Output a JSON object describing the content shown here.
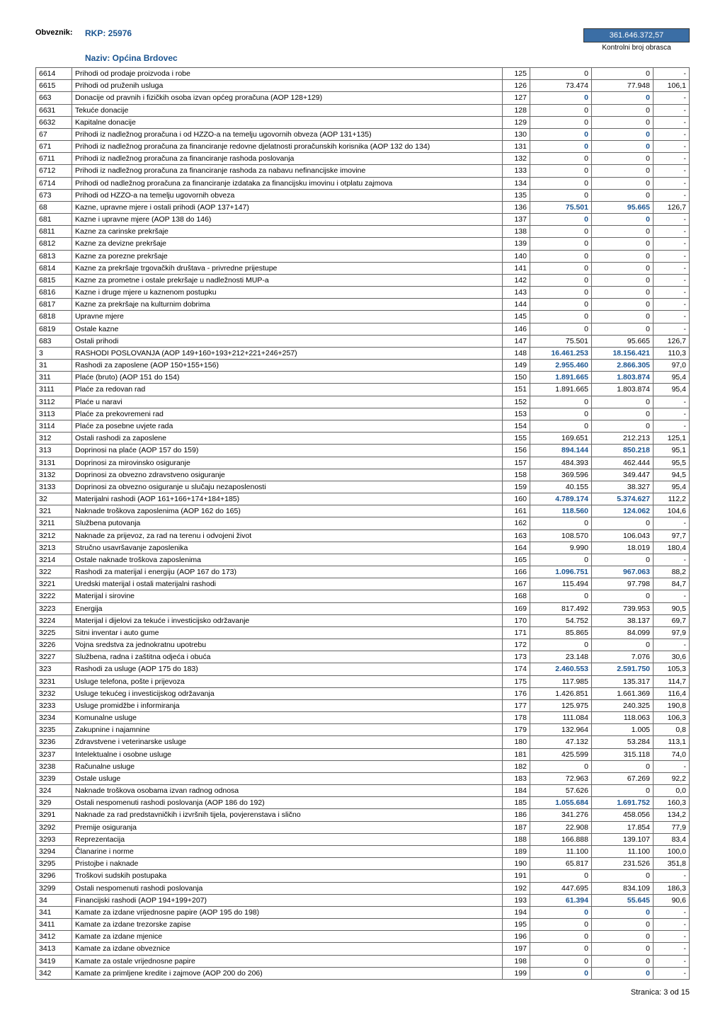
{
  "header": {
    "obveznik_label": "Obveznik:",
    "rkp": "RKP: 25976",
    "naziv_label": "Naziv: Općina Brdovec",
    "kontrol_value": "361.646.372,57",
    "kontrol_label": "Kontrolni broj obrasca"
  },
  "footer": "Stranica: 3 od 15",
  "rows": [
    {
      "c": "6614",
      "d": "Prihodi od prodaje proizvoda i robe",
      "a": "125",
      "v1": "0",
      "v2": "0",
      "v3": "-"
    },
    {
      "c": "6615",
      "d": "Prihodi od pruženih usluga",
      "a": "126",
      "v1": "73.474",
      "v2": "77.948",
      "v3": "106,1"
    },
    {
      "c": "663",
      "d": "Donacije od pravnih i fizičkih osoba izvan općeg proračuna (AOP 128+129)",
      "a": "127",
      "v1": "0",
      "v2": "0",
      "v3": "-",
      "b": 1
    },
    {
      "c": "6631",
      "d": "Tekuće donacije",
      "a": "128",
      "v1": "0",
      "v2": "0",
      "v3": "-"
    },
    {
      "c": "6632",
      "d": "Kapitalne donacije",
      "a": "129",
      "v1": "0",
      "v2": "0",
      "v3": "-"
    },
    {
      "c": "67",
      "d": "Prihodi iz nadležnog proračuna i od HZZO-a na temelju ugovornih obveza (AOP 131+135)",
      "a": "130",
      "v1": "0",
      "v2": "0",
      "v3": "-",
      "b": 1
    },
    {
      "c": "671",
      "d": "Prihodi iz nadležnog proračuna za financiranje redovne djelatnosti proračunskih korisnika (AOP 132 do 134)",
      "a": "131",
      "v1": "0",
      "v2": "0",
      "v3": "-",
      "b": 1
    },
    {
      "c": "6711",
      "d": "Prihodi iz nadležnog proračuna za financiranje rashoda poslovanja",
      "a": "132",
      "v1": "0",
      "v2": "0",
      "v3": "-"
    },
    {
      "c": "6712",
      "d": "Prihodi iz nadležnog proračuna za financiranje rashoda za nabavu nefinancijske imovine",
      "a": "133",
      "v1": "0",
      "v2": "0",
      "v3": "-"
    },
    {
      "c": "6714",
      "d": "Prihodi od nadležnog proračuna za financiranje izdataka za financijsku imovinu i otplatu zajmova",
      "a": "134",
      "v1": "0",
      "v2": "0",
      "v3": "-"
    },
    {
      "c": "673",
      "d": "Prihodi od HZZO-a na temelju ugovornih obveza",
      "a": "135",
      "v1": "0",
      "v2": "0",
      "v3": "-"
    },
    {
      "c": "68",
      "d": "Kazne, upravne mjere i ostali prihodi (AOP 137+147)",
      "a": "136",
      "v1": "75.501",
      "v2": "95.665",
      "v3": "126,7",
      "b": 1
    },
    {
      "c": "681",
      "d": "Kazne i upravne mjere (AOP 138 do 146)",
      "a": "137",
      "v1": "0",
      "v2": "0",
      "v3": "-",
      "b": 1
    },
    {
      "c": "6811",
      "d": "Kazne za carinske prekršaje",
      "a": "138",
      "v1": "0",
      "v2": "0",
      "v3": "-"
    },
    {
      "c": "6812",
      "d": "Kazne za devizne prekršaje",
      "a": "139",
      "v1": "0",
      "v2": "0",
      "v3": "-"
    },
    {
      "c": "6813",
      "d": "Kazne za porezne prekršaje",
      "a": "140",
      "v1": "0",
      "v2": "0",
      "v3": "-"
    },
    {
      "c": "6814",
      "d": "Kazne za prekršaje trgovačkih društava - privredne prijestupe",
      "a": "141",
      "v1": "0",
      "v2": "0",
      "v3": "-"
    },
    {
      "c": "6815",
      "d": "Kazne za prometne i ostale prekršaje u nadležnosti MUP-a",
      "a": "142",
      "v1": "0",
      "v2": "0",
      "v3": "-"
    },
    {
      "c": "6816",
      "d": "Kazne i druge mjere u kaznenom postupku",
      "a": "143",
      "v1": "0",
      "v2": "0",
      "v3": "-"
    },
    {
      "c": "6817",
      "d": "Kazne za prekršaje na kulturnim dobrima",
      "a": "144",
      "v1": "0",
      "v2": "0",
      "v3": "-"
    },
    {
      "c": "6818",
      "d": "Upravne mjere",
      "a": "145",
      "v1": "0",
      "v2": "0",
      "v3": "-"
    },
    {
      "c": "6819",
      "d": "Ostale kazne",
      "a": "146",
      "v1": "0",
      "v2": "0",
      "v3": "-"
    },
    {
      "c": "683",
      "d": "Ostali prihodi",
      "a": "147",
      "v1": "75.501",
      "v2": "95.665",
      "v3": "126,7"
    },
    {
      "c": "3",
      "d": "RASHODI POSLOVANJA (AOP 149+160+193+212+221+246+257)",
      "a": "148",
      "v1": "16.461.253",
      "v2": "18.156.421",
      "v3": "110,3",
      "b": 1
    },
    {
      "c": "31",
      "d": "Rashodi za zaposlene (AOP 150+155+156)",
      "a": "149",
      "v1": "2.955.460",
      "v2": "2.866.305",
      "v3": "97,0",
      "b": 1
    },
    {
      "c": "311",
      "d": "Plaće (bruto) (AOP 151 do 154)",
      "a": "150",
      "v1": "1.891.665",
      "v2": "1.803.874",
      "v3": "95,4",
      "b": 1
    },
    {
      "c": "3111",
      "d": "Plaće za redovan rad",
      "a": "151",
      "v1": "1.891.665",
      "v2": "1.803.874",
      "v3": "95,4"
    },
    {
      "c": "3112",
      "d": "Plaće u naravi",
      "a": "152",
      "v1": "0",
      "v2": "0",
      "v3": "-"
    },
    {
      "c": "3113",
      "d": "Plaće za prekovremeni rad",
      "a": "153",
      "v1": "0",
      "v2": "0",
      "v3": "-"
    },
    {
      "c": "3114",
      "d": "Plaće za posebne uvjete rada",
      "a": "154",
      "v1": "0",
      "v2": "0",
      "v3": "-"
    },
    {
      "c": "312",
      "d": "Ostali rashodi za zaposlene",
      "a": "155",
      "v1": "169.651",
      "v2": "212.213",
      "v3": "125,1"
    },
    {
      "c": "313",
      "d": "Doprinosi na plaće (AOP 157 do 159)",
      "a": "156",
      "v1": "894.144",
      "v2": "850.218",
      "v3": "95,1",
      "b": 1
    },
    {
      "c": "3131",
      "d": "Doprinosi za mirovinsko osiguranje",
      "a": "157",
      "v1": "484.393",
      "v2": "462.444",
      "v3": "95,5"
    },
    {
      "c": "3132",
      "d": "Doprinosi za obvezno zdravstveno osiguranje",
      "a": "158",
      "v1": "369.596",
      "v2": "349.447",
      "v3": "94,5"
    },
    {
      "c": "3133",
      "d": "Doprinosi za obvezno osiguranje u slučaju nezaposlenosti",
      "a": "159",
      "v1": "40.155",
      "v2": "38.327",
      "v3": "95,4"
    },
    {
      "c": "32",
      "d": "Materijalni rashodi (AOP 161+166+174+184+185)",
      "a": "160",
      "v1": "4.789.174",
      "v2": "5.374.627",
      "v3": "112,2",
      "b": 1
    },
    {
      "c": "321",
      "d": "Naknade troškova zaposlenima (AOP 162 do 165)",
      "a": "161",
      "v1": "118.560",
      "v2": "124.062",
      "v3": "104,6",
      "b": 1
    },
    {
      "c": "3211",
      "d": "Službena putovanja",
      "a": "162",
      "v1": "0",
      "v2": "0",
      "v3": "-"
    },
    {
      "c": "3212",
      "d": "Naknade za prijevoz, za rad na terenu i odvojeni život",
      "a": "163",
      "v1": "108.570",
      "v2": "106.043",
      "v3": "97,7"
    },
    {
      "c": "3213",
      "d": "Stručno usavršavanje zaposlenika",
      "a": "164",
      "v1": "9.990",
      "v2": "18.019",
      "v3": "180,4"
    },
    {
      "c": "3214",
      "d": "Ostale naknade troškova zaposlenima",
      "a": "165",
      "v1": "0",
      "v2": "0",
      "v3": "-"
    },
    {
      "c": "322",
      "d": "Rashodi za materijal i energiju (AOP 167 do 173)",
      "a": "166",
      "v1": "1.096.751",
      "v2": "967.063",
      "v3": "88,2",
      "b": 1
    },
    {
      "c": "3221",
      "d": "Uredski materijal i ostali materijalni rashodi",
      "a": "167",
      "v1": "115.494",
      "v2": "97.798",
      "v3": "84,7"
    },
    {
      "c": "3222",
      "d": "Materijal i sirovine",
      "a": "168",
      "v1": "0",
      "v2": "0",
      "v3": "-"
    },
    {
      "c": "3223",
      "d": "Energija",
      "a": "169",
      "v1": "817.492",
      "v2": "739.953",
      "v3": "90,5"
    },
    {
      "c": "3224",
      "d": "Materijal i dijelovi za tekuće i investicijsko održavanje",
      "a": "170",
      "v1": "54.752",
      "v2": "38.137",
      "v3": "69,7"
    },
    {
      "c": "3225",
      "d": "Sitni inventar i auto gume",
      "a": "171",
      "v1": "85.865",
      "v2": "84.099",
      "v3": "97,9"
    },
    {
      "c": "3226",
      "d": "Vojna sredstva za jednokratnu upotrebu",
      "a": "172",
      "v1": "0",
      "v2": "0",
      "v3": "-"
    },
    {
      "c": "3227",
      "d": "Službena, radna i zaštitna odjeća i obuća",
      "a": "173",
      "v1": "23.148",
      "v2": "7.076",
      "v3": "30,6"
    },
    {
      "c": "323",
      "d": "Rashodi za usluge (AOP 175 do 183)",
      "a": "174",
      "v1": "2.460.553",
      "v2": "2.591.750",
      "v3": "105,3",
      "b": 1
    },
    {
      "c": "3231",
      "d": "Usluge telefona, pošte i prijevoza",
      "a": "175",
      "v1": "117.985",
      "v2": "135.317",
      "v3": "114,7"
    },
    {
      "c": "3232",
      "d": "Usluge tekućeg i investicijskog održavanja",
      "a": "176",
      "v1": "1.426.851",
      "v2": "1.661.369",
      "v3": "116,4"
    },
    {
      "c": "3233",
      "d": "Usluge promidžbe i informiranja",
      "a": "177",
      "v1": "125.975",
      "v2": "240.325",
      "v3": "190,8"
    },
    {
      "c": "3234",
      "d": "Komunalne usluge",
      "a": "178",
      "v1": "111.084",
      "v2": "118.063",
      "v3": "106,3"
    },
    {
      "c": "3235",
      "d": "Zakupnine i najamnine",
      "a": "179",
      "v1": "132.964",
      "v2": "1.005",
      "v3": "0,8"
    },
    {
      "c": "3236",
      "d": "Zdravstvene i veterinarske usluge",
      "a": "180",
      "v1": "47.132",
      "v2": "53.284",
      "v3": "113,1"
    },
    {
      "c": "3237",
      "d": "Intelektualne i osobne usluge",
      "a": "181",
      "v1": "425.599",
      "v2": "315.118",
      "v3": "74,0"
    },
    {
      "c": "3238",
      "d": "Računalne usluge",
      "a": "182",
      "v1": "0",
      "v2": "0",
      "v3": "-"
    },
    {
      "c": "3239",
      "d": "Ostale usluge",
      "a": "183",
      "v1": "72.963",
      "v2": "67.269",
      "v3": "92,2"
    },
    {
      "c": "324",
      "d": "Naknade troškova osobama izvan radnog odnosa",
      "a": "184",
      "v1": "57.626",
      "v2": "0",
      "v3": "0,0"
    },
    {
      "c": "329",
      "d": "Ostali nespomenuti rashodi poslovanja (AOP 186 do 192)",
      "a": "185",
      "v1": "1.055.684",
      "v2": "1.691.752",
      "v3": "160,3",
      "b": 1
    },
    {
      "c": "3291",
      "d": "Naknade za rad predstavničkih i izvršnih tijela, povjerenstava i slično",
      "a": "186",
      "v1": "341.276",
      "v2": "458.056",
      "v3": "134,2"
    },
    {
      "c": "3292",
      "d": "Premije osiguranja",
      "a": "187",
      "v1": "22.908",
      "v2": "17.854",
      "v3": "77,9"
    },
    {
      "c": "3293",
      "d": "Reprezentacija",
      "a": "188",
      "v1": "166.888",
      "v2": "139.107",
      "v3": "83,4"
    },
    {
      "c": "3294",
      "d": "Članarine i norme",
      "a": "189",
      "v1": "11.100",
      "v2": "11.100",
      "v3": "100,0"
    },
    {
      "c": "3295",
      "d": "Pristojbe i naknade",
      "a": "190",
      "v1": "65.817",
      "v2": "231.526",
      "v3": "351,8"
    },
    {
      "c": "3296",
      "d": "Troškovi sudskih postupaka",
      "a": "191",
      "v1": "0",
      "v2": "0",
      "v3": "-"
    },
    {
      "c": "3299",
      "d": "Ostali nespomenuti rashodi poslovanja",
      "a": "192",
      "v1": "447.695",
      "v2": "834.109",
      "v3": "186,3"
    },
    {
      "c": "34",
      "d": "Financijski rashodi (AOP 194+199+207)",
      "a": "193",
      "v1": "61.394",
      "v2": "55.645",
      "v3": "90,6",
      "b": 1
    },
    {
      "c": "341",
      "d": "Kamate za izdane vrijednosne papire (AOP 195 do 198)",
      "a": "194",
      "v1": "0",
      "v2": "0",
      "v3": "-",
      "b": 1
    },
    {
      "c": "3411",
      "d": "Kamate za izdane trezorske zapise",
      "a": "195",
      "v1": "0",
      "v2": "0",
      "v3": "-"
    },
    {
      "c": "3412",
      "d": "Kamate za izdane mjenice",
      "a": "196",
      "v1": "0",
      "v2": "0",
      "v3": "-"
    },
    {
      "c": "3413",
      "d": "Kamate za izdane obveznice",
      "a": "197",
      "v1": "0",
      "v2": "0",
      "v3": "-"
    },
    {
      "c": "3419",
      "d": "Kamate za ostale vrijednosne papire",
      "a": "198",
      "v1": "0",
      "v2": "0",
      "v3": "-"
    },
    {
      "c": "342",
      "d": "Kamate za primljene kredite i zajmove (AOP 200 do 206)",
      "a": "199",
      "v1": "0",
      "v2": "0",
      "v3": "-",
      "b": 1
    }
  ]
}
